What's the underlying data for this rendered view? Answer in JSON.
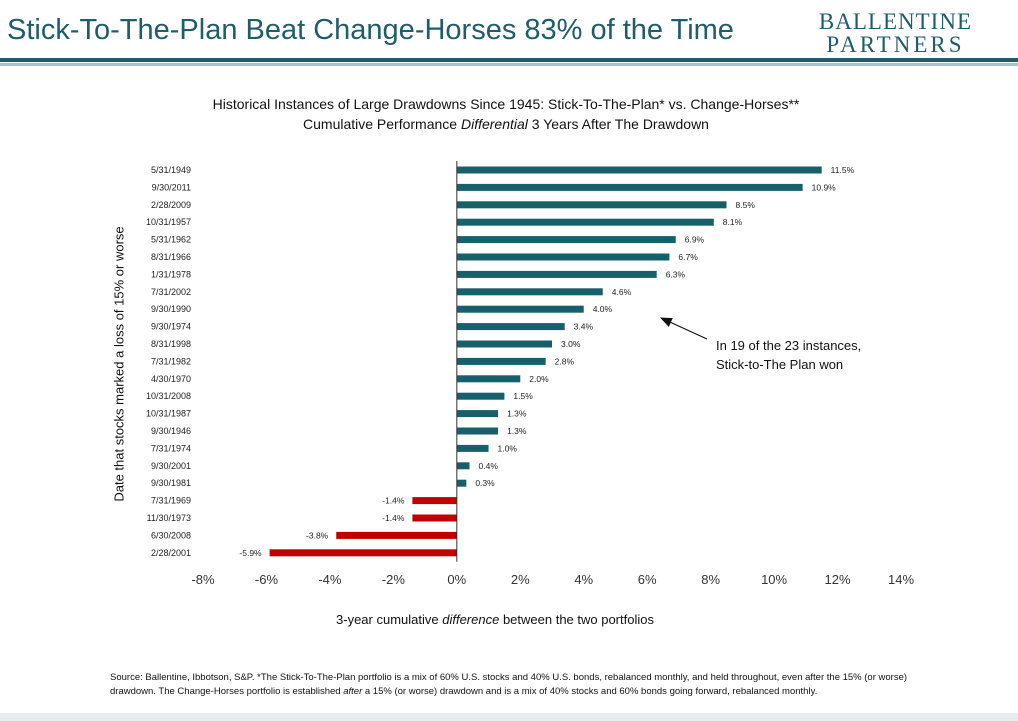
{
  "header": {
    "title": "Stick-To-The-Plan Beat Change-Horses 83% of the Time",
    "logo_line1": "BALLENTINE",
    "logo_line2": "PARTNERS"
  },
  "chart_data": {
    "type": "bar",
    "orientation": "horizontal",
    "title_line1": "Historical Instances of Large Drawdowns Since 1945:  Stick-To-The-Plan* vs. Change-Horses**",
    "title_line2_pre": "Cumulative Performance ",
    "title_line2_em": "Differential",
    "title_line2_post": " 3 Years  After The Drawdown",
    "ylabel": "Date that stocks marked a loss of 15% or worse",
    "xlabel_pre": "3-year cumulative ",
    "xlabel_em": "difference",
    "xlabel_post": " between the two portfolios",
    "xlim": [
      -8,
      14
    ],
    "xticks": [
      -8,
      -6,
      -4,
      -2,
      0,
      2,
      4,
      6,
      8,
      10,
      12,
      14
    ],
    "xtick_labels": [
      "-8%",
      "-6%",
      "-4%",
      "-2%",
      "0%",
      "2%",
      "4%",
      "6%",
      "8%",
      "10%",
      "12%",
      "14%"
    ],
    "categories": [
      "5/31/1949",
      "9/30/2011",
      "2/28/2009",
      "10/31/1957",
      "5/31/1962",
      "8/31/1966",
      "1/31/1978",
      "7/31/2002",
      "9/30/1990",
      "9/30/1974",
      "8/31/1998",
      "7/31/1982",
      "4/30/1970",
      "10/31/2008",
      "10/31/1987",
      "9/30/1946",
      "7/31/1974",
      "9/30/2001",
      "9/30/1981",
      "7/31/1969",
      "11/30/1973",
      "6/30/2008",
      "2/28/2001"
    ],
    "values": [
      11.5,
      10.9,
      8.5,
      8.1,
      6.9,
      6.7,
      6.3,
      4.6,
      4.0,
      3.4,
      3.0,
      2.8,
      2.0,
      1.5,
      1.3,
      1.3,
      1.0,
      0.4,
      0.3,
      -1.4,
      -1.4,
      -3.8,
      -5.9
    ],
    "value_labels": [
      "11.5%",
      "10.9%",
      "8.5%",
      "8.1%",
      "6.9%",
      "6.7%",
      "6.3%",
      "4.6%",
      "4.0%",
      "3.4%",
      "3.0%",
      "2.8%",
      "2.0%",
      "1.5%",
      "1.3%",
      "1.3%",
      "1.0%",
      "0.4%",
      "0.3%",
      "-1.4%",
      "-1.4%",
      "-3.8%",
      "-5.9%"
    ],
    "colors": {
      "positive": "#175f6a",
      "negative": "#c00000",
      "axis": "#333333"
    },
    "grid": false,
    "annotation": {
      "line1": "In 19 of the 23 instances,",
      "line2": "Stick-to-The Plan won"
    }
  },
  "footnote": {
    "part1": "Source:  Ballentine, Ibbotson, S&P.  *The Stick-To-The-Plan portfolio is a mix of 60% U.S. stocks and 40% U.S. bonds, rebalanced monthly, and held throughout, even after the 15% (or worse) drawdown.    The Change-Horses portfolio is established ",
    "em": "after",
    "part2": " a 15% (or worse) drawdown and is a mix of 40% stocks and 60% bonds going forward, rebalanced monthly."
  }
}
